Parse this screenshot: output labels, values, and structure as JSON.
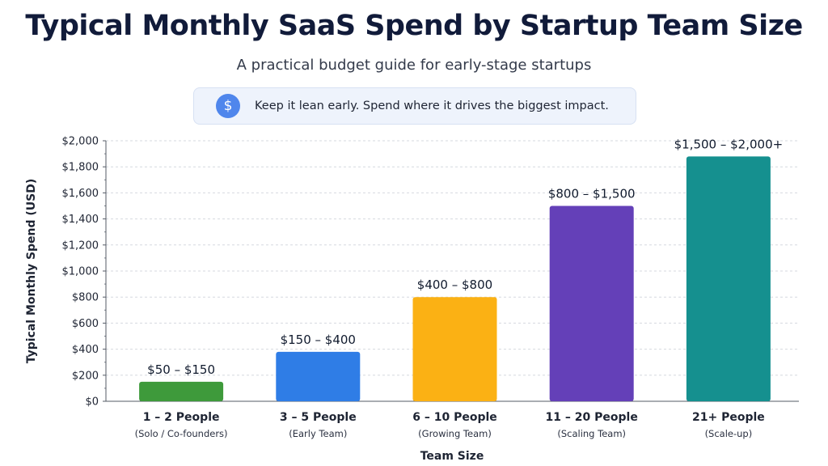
{
  "header": {
    "title": "Typical Monthly SaaS Spend by Startup Team Size",
    "subtitle": "A practical budget guide for early-stage startups"
  },
  "banner": {
    "icon": "dollar-icon",
    "icon_glyph": "$",
    "text": "Keep it lean early.  Spend where it drives the biggest impact."
  },
  "chart_data": {
    "type": "bar",
    "title": "Typical Monthly SaaS Spend by Startup Team Size",
    "subtitle": "A practical budget guide for early-stage startups",
    "xlabel": "Team Size",
    "ylabel": "Typical Monthly Spend (USD)",
    "ylim": [
      0,
      2000
    ],
    "yticks": [
      0,
      200,
      400,
      600,
      800,
      1000,
      1200,
      1400,
      1600,
      1800,
      2000
    ],
    "ytick_labels": [
      "$0",
      "$200",
      "$400",
      "$600",
      "$800",
      "$1,000",
      "$1,200",
      "$1,400",
      "$1,600",
      "$1,800",
      "$2,000"
    ],
    "grid": true,
    "legend": "none",
    "categories": [
      "1 – 2 People",
      "3 – 5 People",
      "6 – 10 People",
      "11 – 20 People",
      "21+ People"
    ],
    "category_subtitles": [
      "(Solo / Co-founders)",
      "(Early Team)",
      "(Growing Team)",
      "(Scaling Team)",
      "(Scale-up)"
    ],
    "values": [
      150,
      380,
      800,
      1500,
      1880
    ],
    "value_labels": [
      "$50 – $150",
      "$150 – $400",
      "$400 – $800",
      "$800 – $1,500",
      "$1,500 – $2,000+"
    ],
    "colors": [
      "#3e9a3b",
      "#2f7de6",
      "#fbb114",
      "#6440b8",
      "#15908f"
    ]
  }
}
